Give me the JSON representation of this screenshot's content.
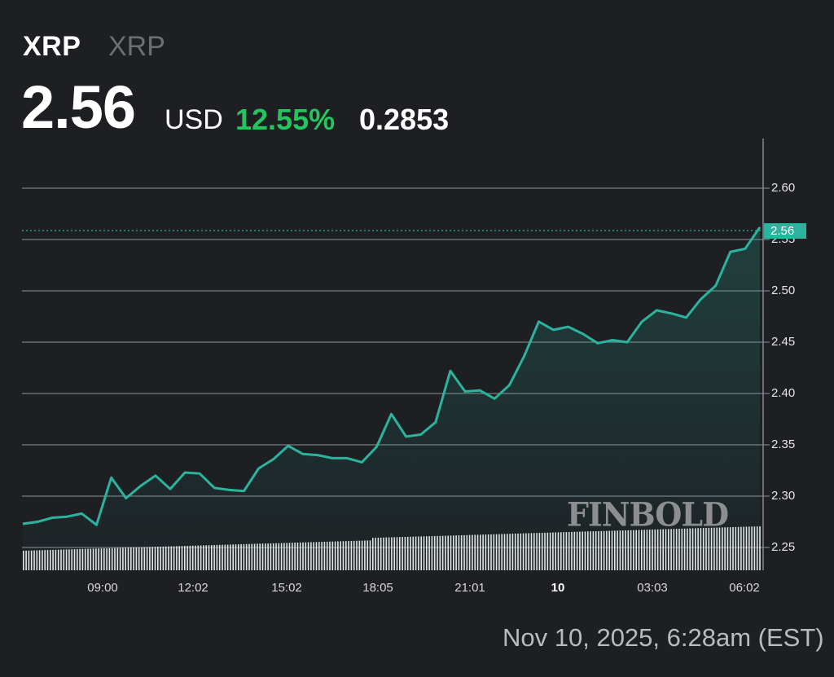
{
  "header": {
    "name": "XRP",
    "symbol": "XRP",
    "price": "2.56",
    "currency": "USD",
    "change_percent": "12.55%",
    "change_abs": "0.2853"
  },
  "colors": {
    "background": "#1d1f23",
    "line_up": "#2bb39e",
    "line_down": "#e05a56",
    "positive": "#22c55e",
    "grid": "#7a7c80"
  },
  "last_price_badge": "2.56",
  "watermark": "FINBOLD",
  "timestamp": "Nov 10, 2025, 6:28am (EST)",
  "y_axis": {
    "ticks": [
      "2.60",
      "2.55",
      "2.50",
      "2.45",
      "2.40",
      "2.35",
      "2.30",
      "2.25"
    ]
  },
  "x_axis": {
    "ticks": [
      "09:00",
      "12:02",
      "15:02",
      "18:05",
      "21:01",
      "10",
      "03:03",
      "06:02"
    ]
  },
  "chart_data": {
    "type": "line",
    "title": "XRP 2.56 USD +12.55% (+0.2853)",
    "xlabel": "",
    "ylabel": "USD",
    "ylim": [
      2.23,
      2.65
    ],
    "grid": true,
    "legend": null,
    "x": [
      "06:30",
      "07:00",
      "07:30",
      "08:00",
      "08:30",
      "09:00",
      "09:15",
      "09:30",
      "10:00",
      "10:30",
      "11:00",
      "11:30",
      "12:02",
      "12:30",
      "13:00",
      "13:30",
      "14:00",
      "14:30",
      "15:02",
      "15:30",
      "16:00",
      "16:30",
      "17:00",
      "17:30",
      "18:05",
      "18:20",
      "18:40",
      "19:00",
      "19:30",
      "20:00",
      "20:30",
      "21:01",
      "21:30",
      "22:00",
      "22:30",
      "23:00",
      "23:30",
      "00:00",
      "00:30",
      "01:00",
      "01:30",
      "02:00",
      "02:30",
      "03:03",
      "03:30",
      "04:00",
      "04:30",
      "05:00",
      "05:30",
      "06:02",
      "06:28"
    ],
    "values": [
      2.273,
      2.275,
      2.279,
      2.28,
      2.283,
      2.272,
      2.318,
      2.298,
      2.31,
      2.32,
      2.307,
      2.323,
      2.322,
      2.308,
      2.306,
      2.305,
      2.327,
      2.336,
      2.349,
      2.341,
      2.34,
      2.337,
      2.337,
      2.333,
      2.348,
      2.38,
      2.358,
      2.36,
      2.372,
      2.422,
      2.402,
      2.403,
      2.395,
      2.408,
      2.436,
      2.47,
      2.462,
      2.465,
      2.458,
      2.449,
      2.452,
      2.45,
      2.47,
      2.481,
      2.478,
      2.474,
      2.492,
      2.505,
      2.538,
      2.541,
      2.562
    ],
    "volume_profile": "cumulative volume bars rising gradually from left to right at bottom of chart",
    "last_value": 2.56
  }
}
